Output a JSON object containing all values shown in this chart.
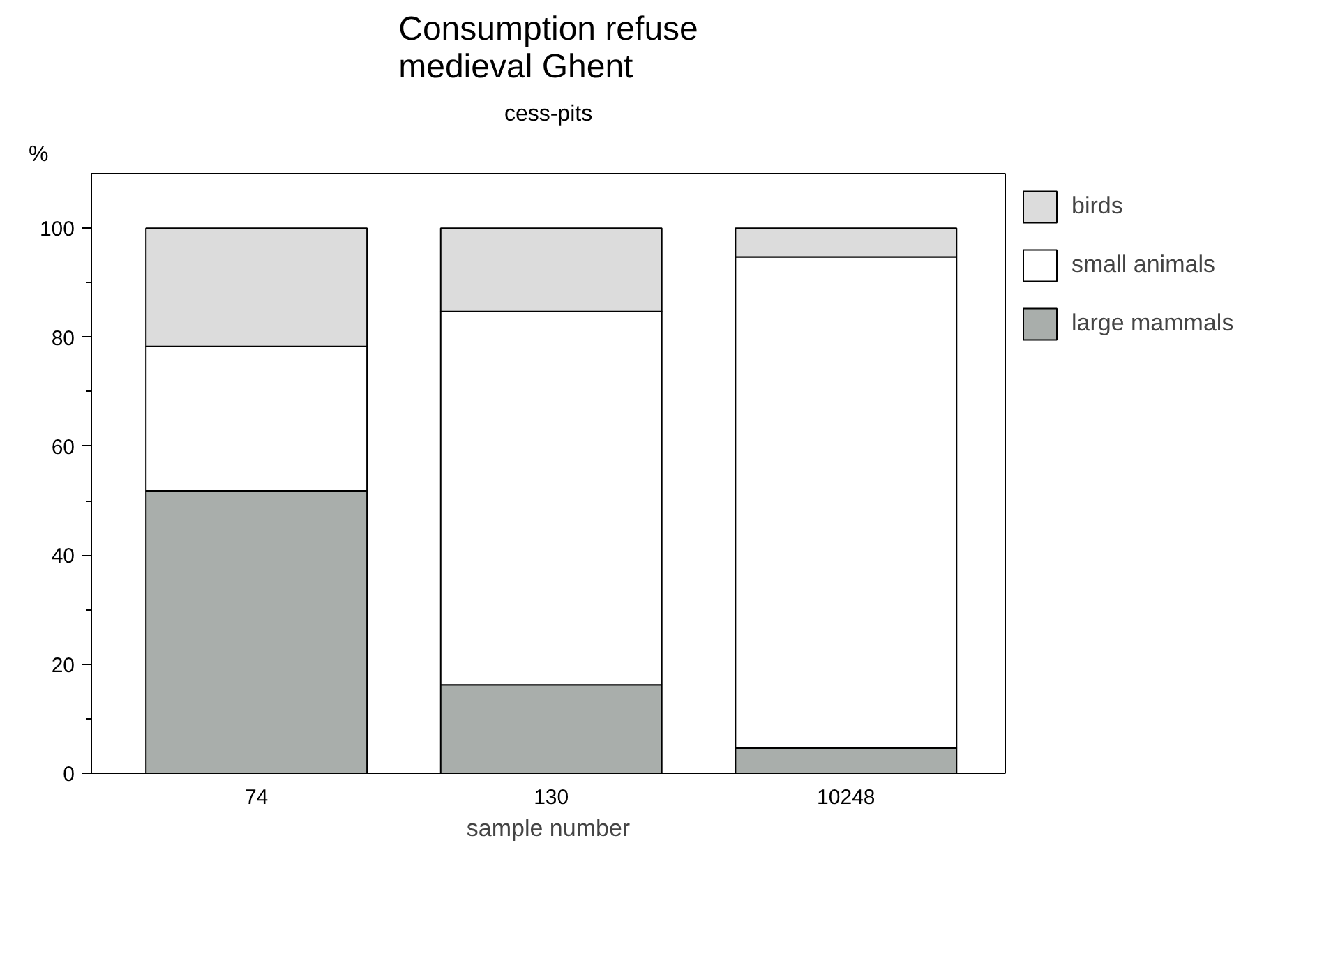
{
  "chart_data": {
    "type": "bar",
    "title": "Consumption refuse\nmedieval Ghent",
    "subtitle": "cess-pits",
    "xlabel": "sample number",
    "ylabel": "%",
    "categories": [
      "74",
      "130",
      "10248"
    ],
    "stacked": true,
    "series": [
      {
        "name": "large mammals",
        "color": "#a9aeab",
        "values": [
          51.8,
          16.2,
          4.6
        ]
      },
      {
        "name": "small animals",
        "color": "#ffffff",
        "values": [
          26.5,
          68.5,
          90.1
        ]
      },
      {
        "name": "birds",
        "color": "#dcdcdc",
        "values": [
          21.7,
          15.3,
          5.3
        ]
      }
    ],
    "ylim": [
      0,
      110
    ],
    "yticks": [
      0,
      20,
      40,
      60,
      80,
      100
    ],
    "grid": false,
    "legend": "top right"
  }
}
